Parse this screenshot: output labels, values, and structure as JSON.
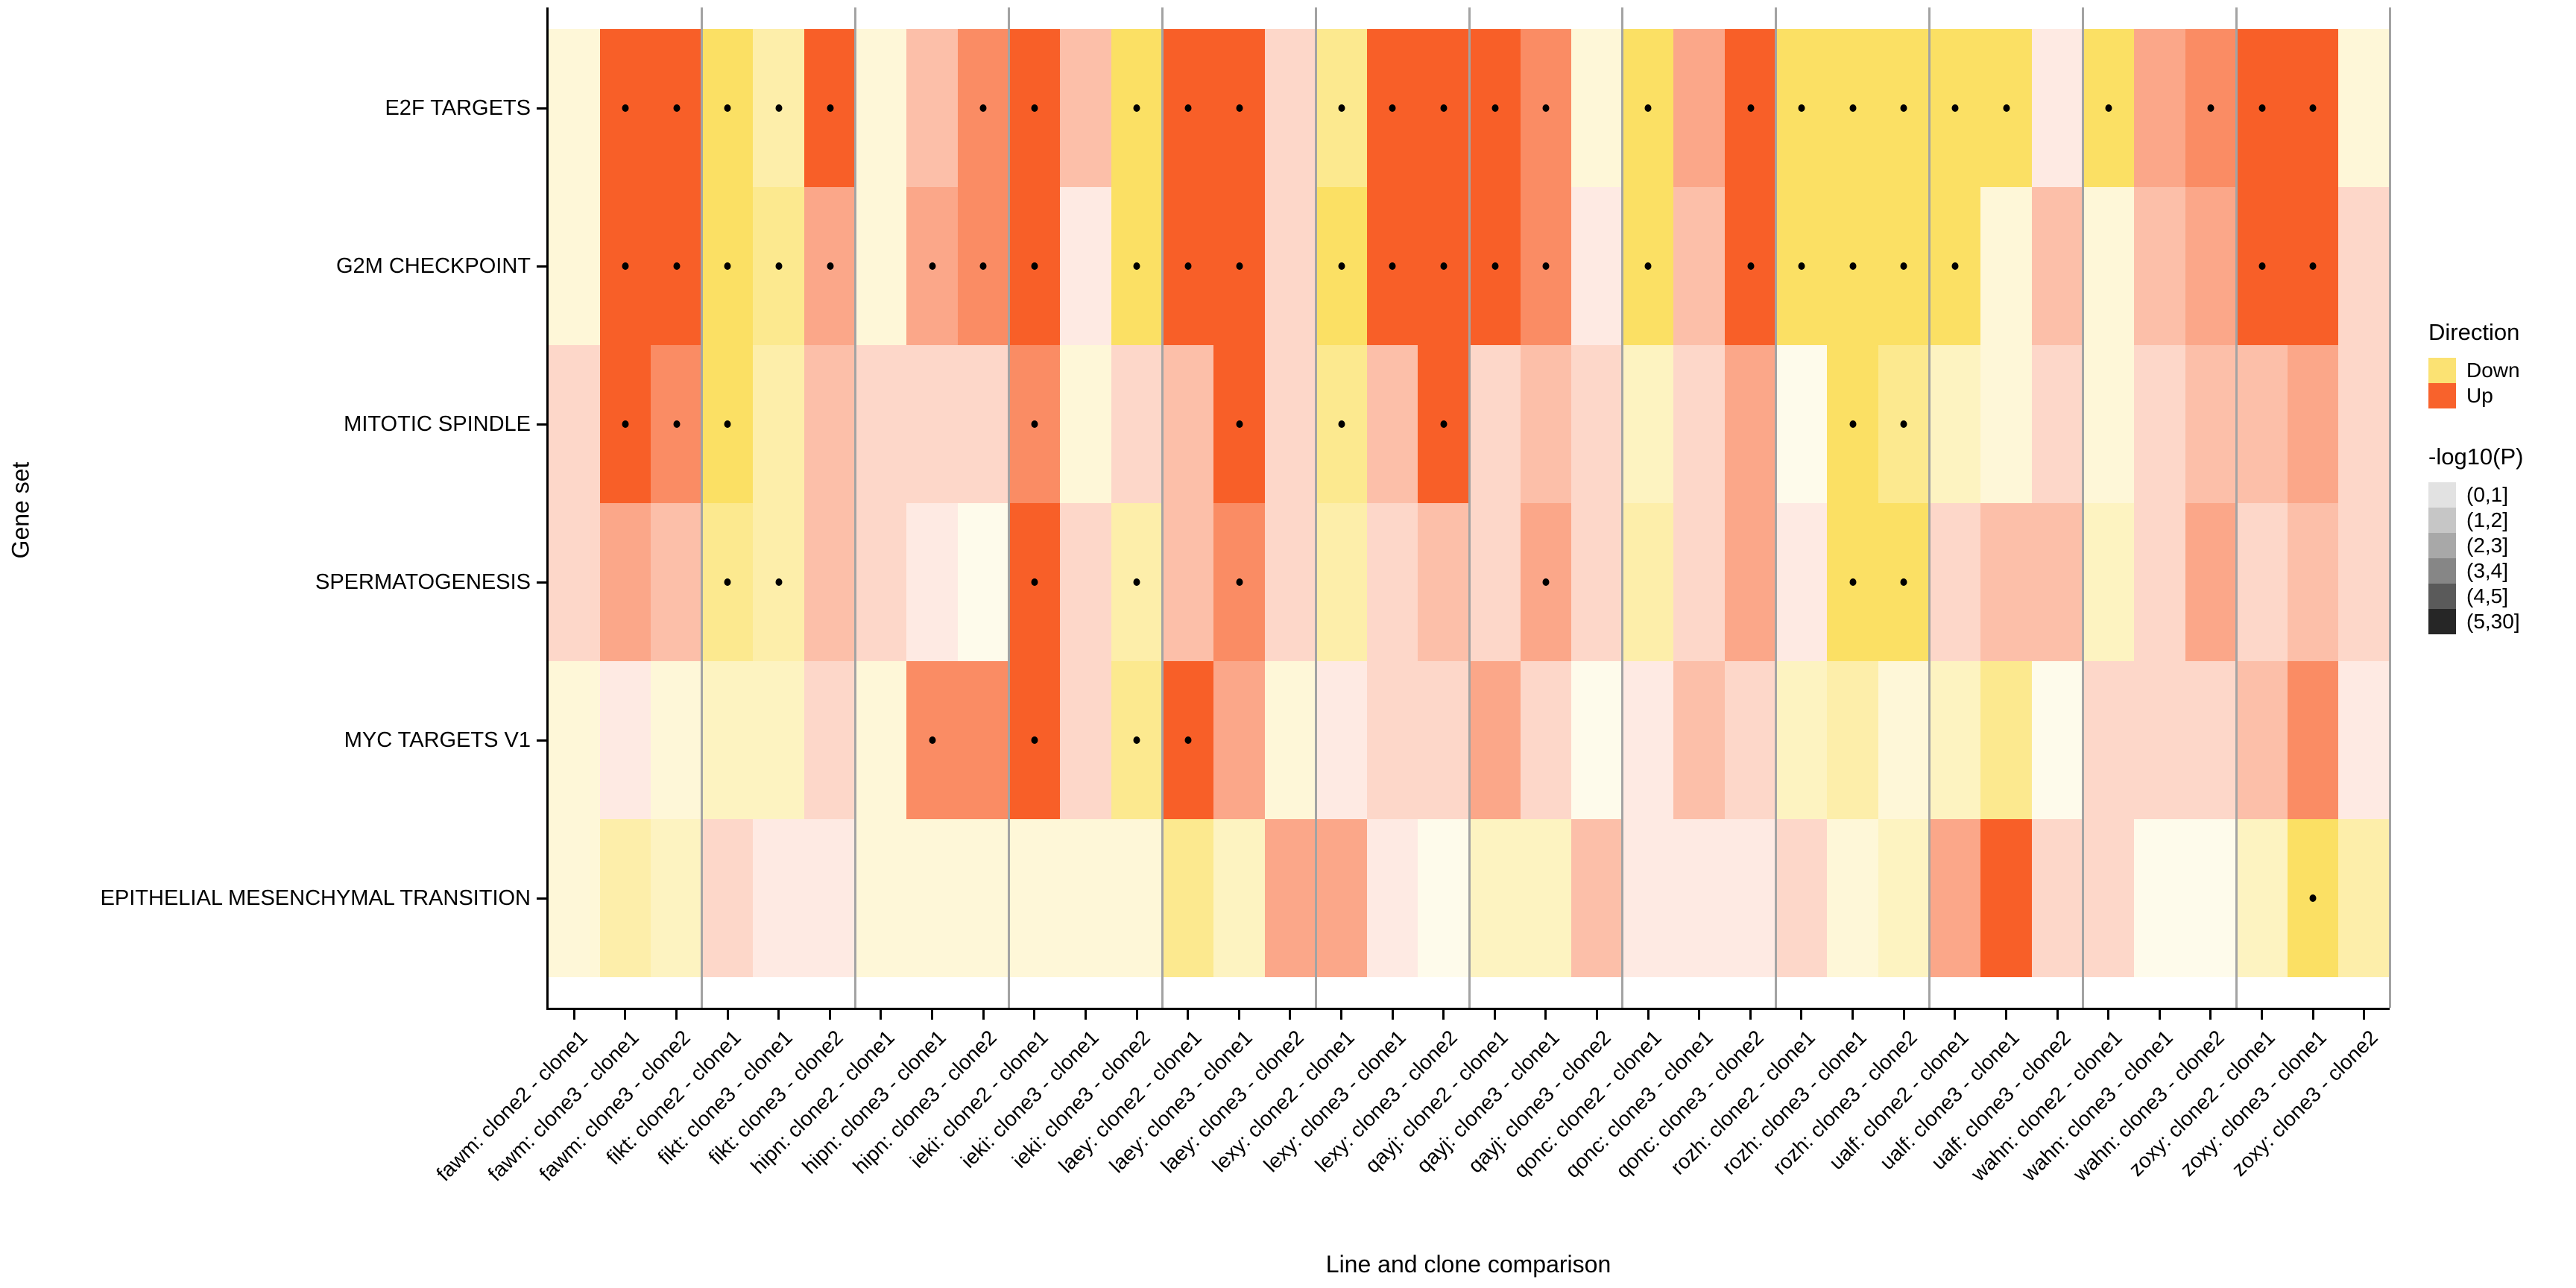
{
  "chart_data": {
    "type": "heatmap",
    "title": "",
    "xlabel": "Line and clone comparison",
    "ylabel": "Gene set",
    "grid": "off",
    "x_categories": [
      "fawm: clone2 - clone1",
      "fawm: clone3 - clone1",
      "fawm: clone3 - clone2",
      "fikt: clone2 - clone1",
      "fikt: clone3 - clone1",
      "fikt: clone3 - clone2",
      "hipn: clone2 - clone1",
      "hipn: clone3 - clone1",
      "hipn: clone3 - clone2",
      "ieki: clone2 - clone1",
      "ieki: clone3 - clone1",
      "ieki: clone3 - clone2",
      "laey: clone2 - clone1",
      "laey: clone3 - clone1",
      "laey: clone3 - clone2",
      "lexy: clone2 - clone1",
      "lexy: clone3 - clone1",
      "lexy: clone3 - clone2",
      "qayj: clone2 - clone1",
      "qayj: clone3 - clone1",
      "qayj: clone3 - clone2",
      "qonc: clone2 - clone1",
      "qonc: clone3 - clone1",
      "qonc: clone3 - clone2",
      "rozh: clone2 - clone1",
      "rozh: clone3 - clone1",
      "rozh: clone3 - clone2",
      "ualf: clone2 - clone1",
      "ualf: clone3 - clone1",
      "ualf: clone3 - clone2",
      "wahn: clone2 - clone1",
      "wahn: clone3 - clone1",
      "wahn: clone3 - clone2",
      "zoxy: clone2 - clone1",
      "zoxy: clone3 - clone1",
      "zoxy: clone3 - clone2"
    ],
    "y_categories": [
      "E2F TARGETS",
      "G2M CHECKPOINT",
      "MITOTIC SPINDLE",
      "SPERMATOGENESIS",
      "MYC TARGETS V1",
      "EPITHELIAL MESENCHYMAL TRANSITION"
    ],
    "cell_encoding": "direction letter (U = Up / orange, D = Down / yellow) + -log10(P) intensity bin 1-6 (1 palest, 6 most saturated); trailing * = black significance dot drawn in cell",
    "cells": [
      [
        "D2",
        "U6*",
        "U6*",
        "D6*",
        "D4*",
        "U6*",
        "D2",
        "U3",
        "U5*",
        "U6*",
        "U3",
        "D6*",
        "U6*",
        "U6*",
        "U2",
        "D5*",
        "U6*",
        "U6*",
        "U6*",
        "U5*",
        "D2",
        "D6*",
        "U4",
        "U6*",
        "D6*",
        "D6*",
        "D6*",
        "D6*",
        "D6*",
        "U1",
        "D6*",
        "U4",
        "U5*",
        "U6*",
        "U6*",
        "D2"
      ],
      [
        "D2",
        "U6*",
        "U6*",
        "D6*",
        "D5*",
        "U4*",
        "D2",
        "U4*",
        "U5*",
        "U6*",
        "U1",
        "D6*",
        "U6*",
        "U6*",
        "U2",
        "D6*",
        "U6*",
        "U6*",
        "U6*",
        "U5*",
        "U1",
        "D6*",
        "U3",
        "U6*",
        "D6*",
        "D6*",
        "D6*",
        "D6*",
        "D2",
        "U3",
        "D2",
        "U3",
        "U4",
        "U6*",
        "U6*",
        "U2"
      ],
      [
        "U2",
        "U6*",
        "U5*",
        "D6*",
        "D4",
        "U3",
        "U2",
        "U2",
        "U2",
        "U5*",
        "D2",
        "U2",
        "U3",
        "U6*",
        "U2",
        "D5*",
        "U3",
        "U6*",
        "U2",
        "U3",
        "U2",
        "D3",
        "U2",
        "U4",
        "D1",
        "D6*",
        "D5*",
        "D3",
        "D2",
        "U2",
        "D2",
        "U2",
        "U3",
        "U3",
        "U4",
        "U2"
      ],
      [
        "U2",
        "U4",
        "U3",
        "D5*",
        "D4*",
        "U3",
        "U2",
        "U1",
        "D1",
        "U6*",
        "U2",
        "D4*",
        "U3",
        "U5*",
        "U2",
        "D4",
        "U2",
        "U3",
        "U2",
        "U4*",
        "U2",
        "D4",
        "U2",
        "U4",
        "U1",
        "D6*",
        "D6*",
        "U2",
        "U3",
        "U3",
        "D3",
        "U2",
        "U4",
        "U2",
        "U3",
        "U2"
      ],
      [
        "D2",
        "U1",
        "D2",
        "D3",
        "D3",
        "U2",
        "D2",
        "U5*",
        "U5",
        "U6*",
        "U2",
        "D5*",
        "U6*",
        "U4",
        "D2",
        "U1",
        "U2",
        "U2",
        "U4",
        "U2",
        "D1",
        "U1",
        "U3",
        "U2",
        "D3",
        "D4",
        "D2",
        "D3",
        "D5",
        "D1",
        "U2",
        "U2",
        "U2",
        "U3",
        "U5",
        "U1"
      ],
      [
        "D2",
        "D4",
        "D3",
        "U2",
        "U1",
        "U1",
        "D2",
        "D2",
        "D2",
        "D2",
        "D2",
        "D2",
        "D5",
        "D3",
        "U4",
        "U4",
        "U1",
        "D1",
        "D3",
        "D3",
        "U3",
        "U1",
        "U1",
        "U1",
        "U2",
        "D2",
        "D3",
        "U4",
        "U6",
        "U2",
        "U2",
        "D1",
        "D1",
        "D3",
        "D6*",
        "D4"
      ]
    ],
    "palette": {
      "up_base": "#F85F28",
      "down_base": "#FBE064",
      "alpha_levels": [
        0.13,
        0.25,
        0.4,
        0.55,
        0.72,
        1.0
      ]
    },
    "legend_direction": {
      "title": "Direction",
      "entries": [
        {
          "label": "Down",
          "color": "#FBE273"
        },
        {
          "label": "Up",
          "color": "#F8622C"
        }
      ]
    },
    "legend_pvalue": {
      "title": "-log10(P)",
      "entries": [
        {
          "label": "(0,1]",
          "color": "#E2E2E2"
        },
        {
          "label": "(1,2]",
          "color": "#C6C6C6"
        },
        {
          "label": "(2,3]",
          "color": "#A8A8A8"
        },
        {
          "label": "(3,4]",
          "color": "#868686"
        },
        {
          "label": "(4,5]",
          "color": "#5A5A5A"
        },
        {
          "label": "(5,30]",
          "color": "#262626"
        }
      ]
    }
  }
}
